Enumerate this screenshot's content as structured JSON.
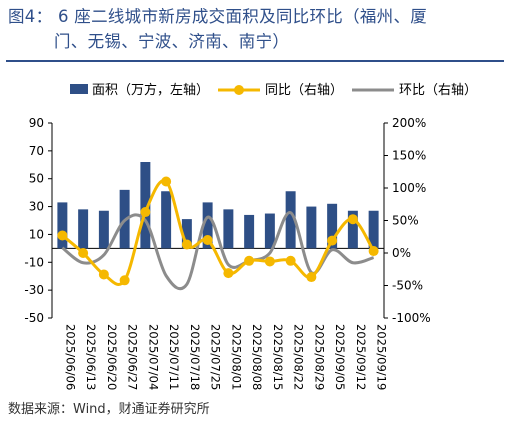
{
  "title_line1": "图4： 6 座二线城市新房成交面积及同比环比（福州、厦",
  "title_line2": "门、无锡、宁波、济南、南宁）",
  "source": "数据来源：Wind，财通证券研究所",
  "chart_data": {
    "type": "bar",
    "categories": [
      "2025/06/06",
      "2025/06/13",
      "2025/06/20",
      "2025/06/27",
      "2025/07/04",
      "2025/07/11",
      "2025/07/18",
      "2025/07/25",
      "2025/08/01",
      "2025/08/08",
      "2025/08/15",
      "2025/08/22",
      "2025/08/29",
      "2025/09/05",
      "2025/09/12",
      "2025/09/19"
    ],
    "series": [
      {
        "name": "面积（万方，左轴）",
        "type": "bar",
        "axis": "left",
        "color": "#2e4f86",
        "values": [
          33,
          28,
          27,
          42,
          62,
          41,
          21,
          33,
          28,
          24,
          25,
          41,
          30,
          32,
          27,
          27
        ]
      },
      {
        "name": "同比（右轴）",
        "type": "line",
        "axis": "right",
        "color": "#f5b800",
        "values": [
          27,
          0,
          -33,
          -42,
          63,
          110,
          13,
          20,
          -31,
          -12,
          -13,
          -12,
          -37,
          19,
          52,
          3
        ]
      },
      {
        "name": "环比（右轴）",
        "type": "line",
        "axis": "right",
        "color": "#8c8c8c",
        "values": [
          8,
          -15,
          -3,
          50,
          50,
          -35,
          -48,
          55,
          -18,
          -12,
          0,
          62,
          -30,
          5,
          -15,
          -7
        ]
      }
    ],
    "left_axis": {
      "min": -50,
      "max": 90,
      "ticks": [
        -50,
        -30,
        -10,
        10,
        30,
        50,
        70,
        90
      ]
    },
    "right_axis": {
      "min": -100,
      "max": 200,
      "ticks": [
        "-100%",
        "-50%",
        "0%",
        "50%",
        "100%",
        "150%",
        "200%"
      ]
    },
    "legend_position": "top",
    "grid": false
  }
}
